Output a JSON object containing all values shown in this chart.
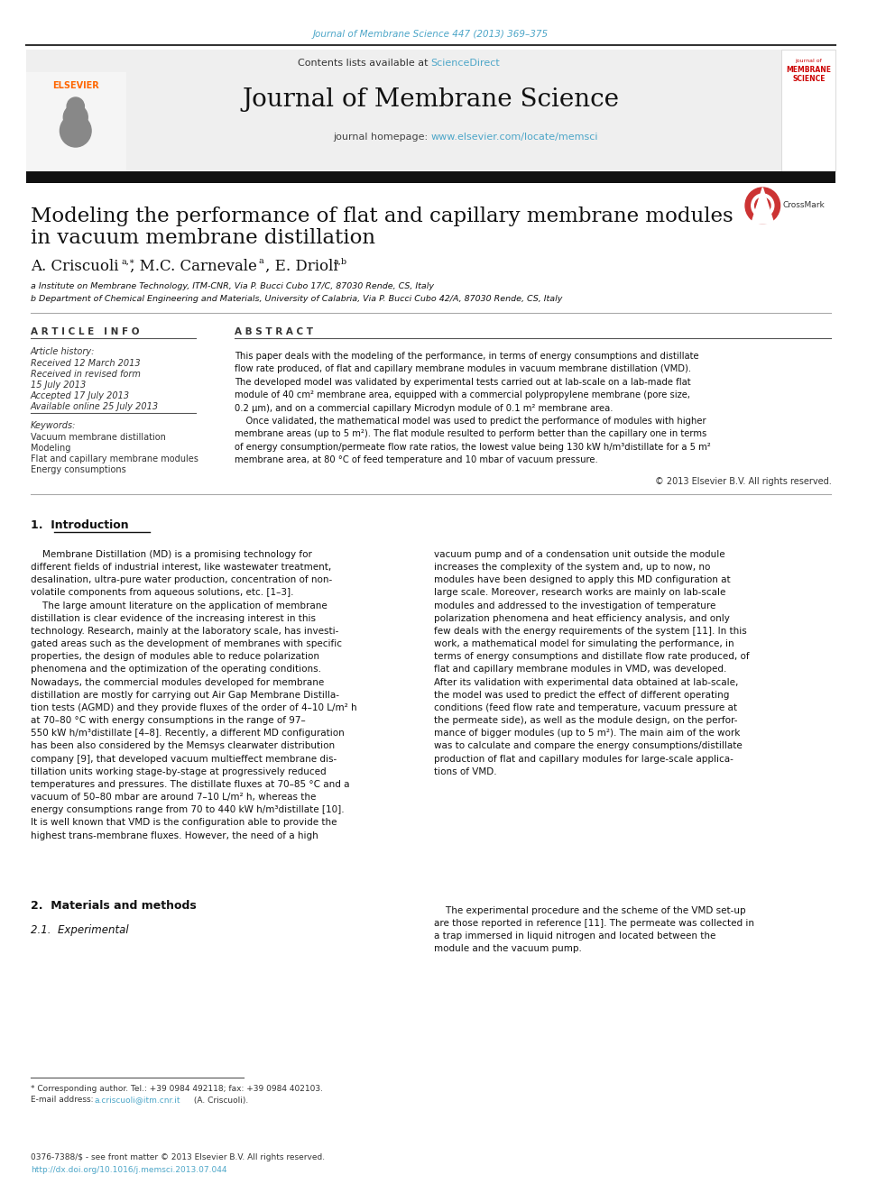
{
  "journal_ref": "Journal of Membrane Science 447 (2013) 369–375",
  "journal_ref_color": "#4da6c8",
  "header_bg": "#f0f0f0",
  "header_text": "Contents lists available at ",
  "sciencedirect": "ScienceDirect",
  "sciencedirect_color": "#4da6c8",
  "journal_name": "Journal of Membrane Science",
  "journal_homepage_label": "journal homepage: ",
  "journal_homepage_url": "www.elsevier.com/locate/memsci",
  "journal_homepage_color": "#4da6c8",
  "thick_bar_color": "#1a1a1a",
  "title_line1": "Modeling the performance of flat and capillary membrane modules",
  "title_line2": "in vacuum membrane distillation",
  "affil_a": "a Institute on Membrane Technology, ITM-CNR, Via P. Bucci Cubo 17/C, 87030 Rende, CS, Italy",
  "affil_b": "b Department of Chemical Engineering and Materials, University of Calabria, Via P. Bucci Cubo 42/A, 87030 Rende, CS, Italy",
  "article_info_header": "A R T I C L E   I N F O",
  "article_history_label": "Article history:",
  "received": "Received 12 March 2013",
  "received_revised": "Received in revised form",
  "date_revised": "15 July 2013",
  "accepted": "Accepted 17 July 2013",
  "available": "Available online 25 July 2013",
  "keywords_label": "Keywords:",
  "kw1": "Vacuum membrane distillation",
  "kw2": "Modeling",
  "kw3": "Flat and capillary membrane modules",
  "kw4": "Energy consumptions",
  "abstract_header": "A B S T R A C T",
  "copyright": "© 2013 Elsevier B.V. All rights reserved.",
  "intro_header": "1.  Introduction",
  "section2_header": "2.  Materials and methods",
  "section21_header": "2.1.  Experimental",
  "footnote_star": "* Corresponding author. Tel.: +39 0984 492118; fax: +39 0984 402103.",
  "footnote_email_label": "E-mail address: ",
  "footnote_email_link": "a.criscuoli@itm.cnr.it",
  "footnote_email_suffix": " (A. Criscuoli).",
  "footnote_email_color": "#4da6c8",
  "footer_text1": "0376-7388/$ - see front matter © 2013 Elsevier B.V. All rights reserved.",
  "footer_text2": "http://dx.doi.org/10.1016/j.memsci.2013.07.044",
  "footer_url_color": "#4da6c8",
  "bg_color": "#ffffff",
  "text_color": "#000000",
  "link_color": "#4da6c8"
}
